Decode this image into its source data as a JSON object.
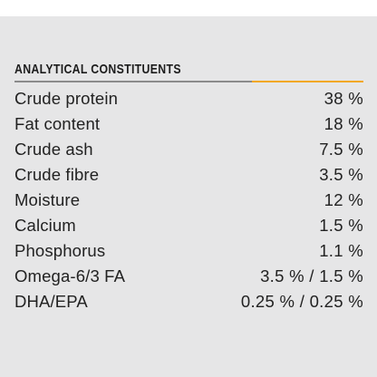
{
  "panel": {
    "title": "ANALYTICAL CONSTITUENTS",
    "accent_color": "#f2a81f",
    "rows": [
      {
        "label": "Crude protein",
        "value": "38 %"
      },
      {
        "label": "Fat content",
        "value": "18 %"
      },
      {
        "label": "Crude ash",
        "value": "7.5 %"
      },
      {
        "label": "Crude fibre",
        "value": "3.5 %"
      },
      {
        "label": "Moisture",
        "value": "12 %"
      },
      {
        "label": "Calcium",
        "value": "1.5 %"
      },
      {
        "label": "Phosphorus",
        "value": "1.1 %"
      },
      {
        "label": "Omega-6/3 FA",
        "value": "3.5 % / 1.5 %"
      },
      {
        "label": "DHA/EPA",
        "value": "0.25 % / 0.25 %"
      }
    ]
  }
}
